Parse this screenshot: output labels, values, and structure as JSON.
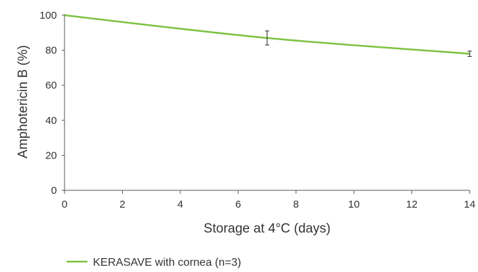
{
  "chart_data": {
    "type": "line",
    "xlabel": "Storage at 4°C (days)",
    "ylabel": "Amphotericin B (%)",
    "xlim": [
      0,
      14
    ],
    "ylim": [
      0,
      100
    ],
    "x_ticks": [
      "0",
      "2",
      "4",
      "6",
      "8",
      "10",
      "12",
      "14"
    ],
    "y_ticks": [
      "0",
      "20",
      "40",
      "60",
      "80",
      "100"
    ],
    "grid": false,
    "legend_position": "bottom-left",
    "series": [
      {
        "name": "KERASAVE with cornea (n=3)",
        "color": "#7dc242",
        "x": [
          0,
          7,
          14
        ],
        "y": [
          100,
          87,
          78
        ],
        "error": [
          0,
          4,
          1.5
        ]
      }
    ]
  }
}
